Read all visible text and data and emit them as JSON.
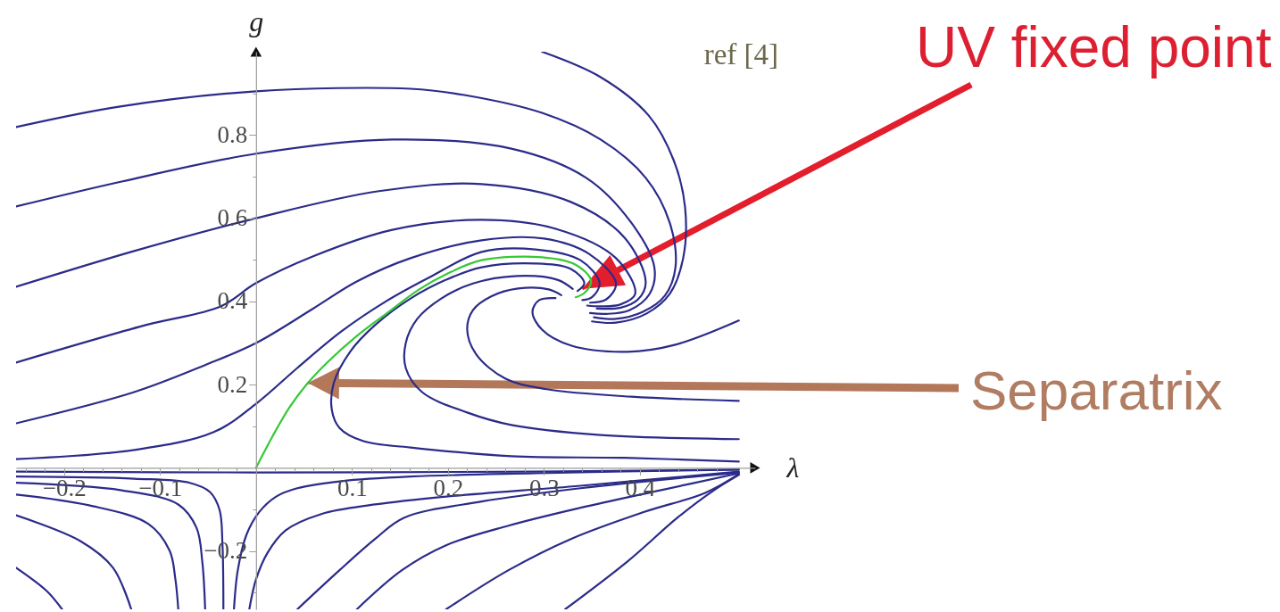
{
  "chart_data": {
    "type": "line",
    "xlabel": "λ",
    "ylabel": "g",
    "xlim": [
      -0.25,
      0.52
    ],
    "ylim": [
      -0.34,
      1.0
    ],
    "xticks": [
      {
        "value": -0.24,
        "label": null
      },
      {
        "value": -0.22,
        "label": null
      },
      {
        "value": -0.2,
        "label": "−0.2"
      },
      {
        "value": -0.18,
        "label": null
      },
      {
        "value": -0.16,
        "label": null
      },
      {
        "value": -0.14,
        "label": null
      },
      {
        "value": -0.12,
        "label": null
      },
      {
        "value": -0.1,
        "label": "−0.1"
      },
      {
        "value": -0.08,
        "label": null
      },
      {
        "value": -0.06,
        "label": null
      },
      {
        "value": -0.04,
        "label": null
      },
      {
        "value": -0.02,
        "label": null
      },
      {
        "value": 0.02,
        "label": null
      },
      {
        "value": 0.04,
        "label": null
      },
      {
        "value": 0.06,
        "label": null
      },
      {
        "value": 0.08,
        "label": null
      },
      0.1,
      {
        "value": 0.12,
        "label": null
      },
      {
        "value": 0.14,
        "label": null
      },
      {
        "value": 0.16,
        "label": null
      },
      {
        "value": 0.18,
        "label": null
      },
      0.2,
      {
        "value": 0.22,
        "label": null
      },
      {
        "value": 0.24,
        "label": null
      },
      {
        "value": 0.26,
        "label": null
      },
      {
        "value": 0.28,
        "label": null
      },
      0.3,
      {
        "value": 0.32,
        "label": null
      },
      {
        "value": 0.34,
        "label": null
      },
      {
        "value": 0.36,
        "label": null
      },
      {
        "value": 0.38,
        "label": null
      },
      0.4,
      {
        "value": 0.42,
        "label": null
      },
      {
        "value": 0.44,
        "label": null
      },
      {
        "value": 0.46,
        "label": null
      },
      {
        "value": 0.48,
        "label": null
      }
    ],
    "yticks": [
      {
        "value": -0.3,
        "label": null
      },
      {
        "value": -0.2,
        "label": "−0.2"
      },
      {
        "value": -0.1,
        "label": null
      },
      {
        "value": 0.1,
        "label": null
      },
      0.2,
      {
        "value": 0.3,
        "label": null
      },
      0.4,
      {
        "value": 0.5,
        "label": null
      },
      0.6,
      {
        "value": 0.7,
        "label": null
      },
      0.8,
      {
        "value": 0.9,
        "label": null
      }
    ],
    "series": [
      {
        "color": "#2b2b8a",
        "x": [
          0.298,
          0.359,
          0.409,
          0.435,
          0.447,
          0.445,
          0.431,
          0.407,
          0.375,
          0.35
        ],
        "values": [
          1.0,
          0.939,
          0.847,
          0.74,
          0.626,
          0.504,
          0.418,
          0.371,
          0.349,
          0.352
        ]
      },
      {
        "color": "#2b2b8a",
        "x": [
          -0.25,
          -0.143,
          0,
          0.161,
          0.217,
          0.298,
          0.359,
          0.406,
          0.431,
          0.437,
          0.426,
          0.403,
          0.375,
          0.352
        ],
        "values": [
          0.819,
          0.868,
          0.905,
          0.911,
          0.896,
          0.853,
          0.789,
          0.697,
          0.589,
          0.482,
          0.414,
          0.375,
          0.358,
          0.362
        ]
      },
      {
        "color": "#2b2b8a",
        "x": [
          -0.25,
          -0.14,
          0,
          0.142,
          0.266,
          0.344,
          0.391,
          0.415,
          0.41,
          0.389,
          0.365,
          0.348
        ],
        "values": [
          0.628,
          0.688,
          0.755,
          0.789,
          0.767,
          0.697,
          0.589,
          0.482,
          0.418,
          0.379,
          0.37,
          0.372
        ]
      },
      {
        "color": "#2b2b8a",
        "x": [
          -0.25,
          -0.127,
          0,
          0.128,
          0.235,
          0.328,
          0.384,
          0.406,
          0.398,
          0.38,
          0.355
        ],
        "values": [
          0.435,
          0.521,
          0.6,
          0.665,
          0.682,
          0.639,
          0.553,
          0.446,
          0.405,
          0.385,
          0.383
        ]
      },
      {
        "color": "#2b2b8a",
        "x": [
          -0.25,
          -0.115,
          -0.037,
          0,
          0.059,
          0.142,
          0.235,
          0.313,
          0.375,
          0.395,
          0.38,
          0.36,
          0.345
        ],
        "values": [
          0.253,
          0.343,
          0.388,
          0.444,
          0.508,
          0.572,
          0.596,
          0.574,
          0.504,
          0.418,
          0.393,
          0.388,
          0.39
        ]
      },
      {
        "color": "#2b2b8a",
        "x": [
          -0.25,
          -0.127,
          -0.053,
          0,
          0.059,
          0.105,
          0.161,
          0.235,
          0.3,
          0.347,
          0.375,
          0.365,
          0.348
        ],
        "values": [
          0.107,
          0.182,
          0.247,
          0.3,
          0.382,
          0.448,
          0.504,
          0.547,
          0.551,
          0.514,
          0.444,
          0.405,
          0.397
        ]
      },
      {
        "color": "#2b2b8a",
        "x": [
          -0.25,
          -0.127,
          -0.044,
          0,
          0.043,
          0.089,
          0.136,
          0.18,
          0.235,
          0.291,
          0.338,
          0.358,
          0.35,
          0.34
        ],
        "values": [
          0.021,
          0.043,
          0.086,
          0.154,
          0.24,
          0.328,
          0.401,
          0.457,
          0.519,
          0.525,
          0.499,
          0.444,
          0.41,
          0.403
        ]
      },
      {
        "color": "#2b2b8a",
        "x": [
          0.503,
          0.384,
          0.266,
          0.161,
          0.112,
          0.087,
          0.079,
          0.081,
          0.098,
          0.124,
          0.161,
          0.198,
          0.235,
          0.291,
          0.328,
          0.342,
          0.335
        ],
        "values": [
          0.015,
          0.024,
          0.028,
          0.049,
          0.064,
          0.096,
          0.139,
          0.204,
          0.279,
          0.343,
          0.407,
          0.452,
          0.482,
          0.491,
          0.478,
          0.444,
          0.425
        ]
      },
      {
        "color": "#2b2b8a",
        "x": [
          0.503,
          0.359,
          0.266,
          0.22,
          0.173,
          0.156,
          0.156,
          0.168,
          0.193,
          0.226,
          0.272,
          0.314,
          0.33
        ],
        "values": [
          0.069,
          0.079,
          0.103,
          0.133,
          0.182,
          0.24,
          0.3,
          0.358,
          0.407,
          0.443,
          0.461,
          0.452,
          0.43
        ]
      },
      {
        "color": "#2b2b8a",
        "x": [
          0.503,
          0.391,
          0.303,
          0.26,
          0.229,
          0.22,
          0.226,
          0.245,
          0.273,
          0.305,
          0.318
        ],
        "values": [
          0.161,
          0.171,
          0.189,
          0.214,
          0.274,
          0.332,
          0.379,
          0.412,
          0.431,
          0.429,
          0.415
        ]
      },
      {
        "color": "#2b2b8a",
        "x": [
          0.503,
          0.437,
          0.387,
          0.328,
          0.298,
          0.288,
          0.295,
          0.312
        ],
        "values": [
          0.354,
          0.296,
          0.279,
          0.294,
          0.332,
          0.375,
          0.403,
          0.408
        ]
      },
      {
        "color": "#2b2b8a",
        "x": [
          -0.25,
          0,
          0.291,
          0.503
        ],
        "values": [
          -0.009,
          -0.011,
          -0.009,
          -0.004
        ]
      },
      {
        "color": "#2b2b8a",
        "x": [
          -0.25,
          -0.127,
          -0.069,
          -0.048,
          -0.038,
          -0.035,
          -0.034
        ],
        "values": [
          -0.021,
          -0.026,
          -0.036,
          -0.058,
          -0.101,
          -0.182,
          -0.34
        ]
      },
      {
        "color": "#2b2b8a",
        "x": [
          -0.25,
          -0.14,
          -0.081,
          -0.062,
          -0.056,
          -0.053
        ],
        "values": [
          -0.036,
          -0.054,
          -0.088,
          -0.144,
          -0.225,
          -0.34
        ]
      },
      {
        "color": "#2b2b8a",
        "x": [
          -0.25,
          -0.174,
          -0.112,
          -0.09,
          -0.084,
          -0.081
        ],
        "values": [
          -0.064,
          -0.09,
          -0.135,
          -0.199,
          -0.268,
          -0.34
        ]
      },
      {
        "color": "#2b2b8a",
        "x": [
          -0.25,
          -0.183,
          -0.149,
          -0.13
        ],
        "values": [
          -0.114,
          -0.176,
          -0.24,
          -0.34
        ]
      },
      {
        "color": "#2b2b8a",
        "x": [
          -0.25,
          -0.218,
          -0.202
        ],
        "values": [
          -0.24,
          -0.296,
          -0.34
        ]
      },
      {
        "color": "#2b2b8a",
        "x": [
          -0.023,
          -0.019,
          -0.01,
          0.003,
          0.021,
          0.043,
          0.089,
          0.161,
          0.291,
          0.503
        ],
        "values": [
          -0.34,
          -0.246,
          -0.161,
          -0.107,
          -0.069,
          -0.049,
          -0.032,
          -0.021,
          -0.013,
          -0.004
        ]
      },
      {
        "color": "#2b2b8a",
        "x": [
          -0.007,
          0,
          0.012,
          0.031,
          0.068,
          0.124,
          0.198,
          0.338,
          0.503
        ],
        "values": [
          -0.34,
          -0.268,
          -0.204,
          -0.15,
          -0.111,
          -0.088,
          -0.069,
          -0.043,
          -0.009
        ]
      },
      {
        "color": "#2b2b8a",
        "x": [
          0.043,
          0.087,
          0.124,
          0.154,
          0.235,
          0.338,
          0.503
        ],
        "values": [
          -0.34,
          -0.246,
          -0.171,
          -0.12,
          -0.081,
          -0.049,
          -0.011
        ]
      },
      {
        "color": "#2b2b8a",
        "x": [
          0.105,
          0.152,
          0.198,
          0.263,
          0.338,
          0.421,
          0.503
        ],
        "values": [
          -0.34,
          -0.246,
          -0.186,
          -0.139,
          -0.096,
          -0.054,
          -0.013
        ]
      },
      {
        "color": "#2b2b8a",
        "x": [
          0.198,
          0.263,
          0.328,
          0.403,
          0.468,
          0.503
        ],
        "values": [
          -0.34,
          -0.246,
          -0.171,
          -0.107,
          -0.06,
          -0.015
        ]
      },
      {
        "color": "#2b2b8a",
        "x": [
          0.322,
          0.387,
          0.44,
          0.477,
          0.503
        ],
        "values": [
          -0.34,
          -0.225,
          -0.118,
          -0.054,
          -0.017
        ]
      },
      {
        "color": "#35c935",
        "x": [
          0,
          0.017,
          0.035,
          0.054,
          0.074,
          0.105,
          0.136,
          0.17,
          0.198,
          0.235,
          0.298,
          0.333,
          0.349,
          0.342,
          0.333
        ],
        "values": [
          0,
          0.075,
          0.146,
          0.204,
          0.253,
          0.317,
          0.371,
          0.429,
          0.465,
          0.499,
          0.506,
          0.488,
          0.45,
          0.42,
          0.41
        ]
      }
    ],
    "annotations": [
      "ref [4]",
      {
        "text": "UV fixed point",
        "x": 0.34,
        "y": 0.43
      },
      {
        "text": "Separatrix",
        "x": 0.054,
        "y": 0.204
      }
    ]
  }
}
